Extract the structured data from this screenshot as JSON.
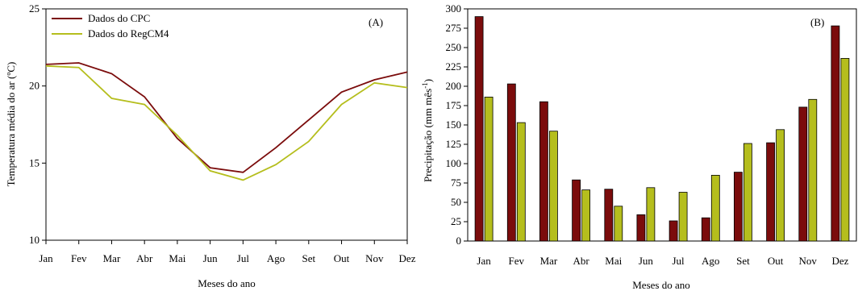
{
  "chart_data": [
    {
      "type": "line",
      "panel_label": "(A)",
      "xlabel": "Meses do ano",
      "ylabel": "Temperatura média do ar (ºC)",
      "categories": [
        "Jan",
        "Fev",
        "Mar",
        "Abr",
        "Mai",
        "Jun",
        "Jul",
        "Ago",
        "Set",
        "Out",
        "Nov",
        "Dez"
      ],
      "ylim": [
        10,
        25
      ],
      "yticks": [
        10,
        15,
        20,
        25
      ],
      "legend_position": "top-left",
      "grid": false,
      "series": [
        {
          "name": "Dados do CPC",
          "color": "#7B0C0C",
          "values": [
            21.4,
            21.5,
            20.8,
            19.3,
            16.6,
            14.7,
            14.4,
            16.0,
            17.8,
            19.6,
            20.4,
            20.9
          ]
        },
        {
          "name": "Dados do RegCM4",
          "color": "#B5BE1D",
          "values": [
            21.3,
            21.2,
            19.2,
            18.8,
            16.8,
            14.5,
            13.9,
            14.9,
            16.4,
            18.8,
            20.2,
            19.9
          ]
        }
      ]
    },
    {
      "type": "bar",
      "panel_label": "(B)",
      "xlabel": "Meses do ano",
      "ylabel_main": "Precipitação (mm mês",
      "ylabel_sup": "-1",
      "ylabel_end": ")",
      "categories": [
        "Jan",
        "Fev",
        "Mar",
        "Abr",
        "Mai",
        "Jun",
        "Jul",
        "Ago",
        "Set",
        "Out",
        "Nov",
        "Dez"
      ],
      "ylim": [
        0,
        300
      ],
      "yticks": [
        0,
        25,
        50,
        75,
        100,
        125,
        150,
        175,
        200,
        225,
        250,
        275,
        300
      ],
      "grid": false,
      "series": [
        {
          "color": "#7B0C0C",
          "values": [
            290,
            203,
            180,
            79,
            67,
            34,
            26,
            30,
            89,
            127,
            173,
            278
          ]
        },
        {
          "color": "#B5BE1D",
          "values": [
            186,
            153,
            142,
            66,
            45,
            69,
            63,
            85,
            126,
            144,
            183,
            236
          ]
        }
      ]
    }
  ]
}
